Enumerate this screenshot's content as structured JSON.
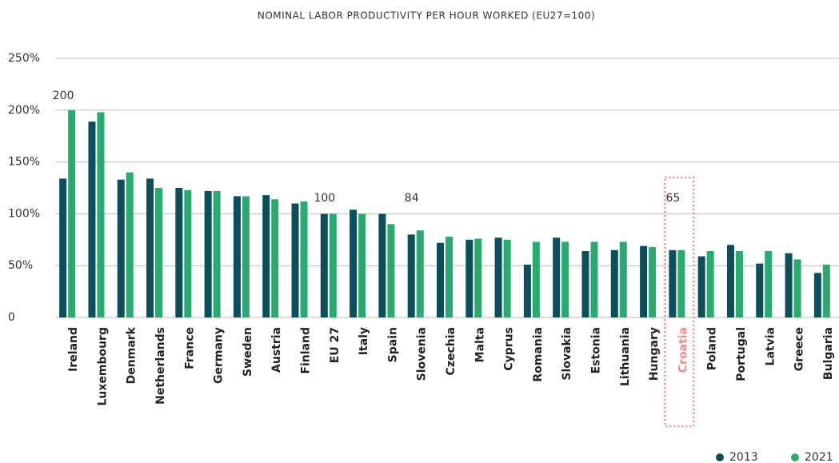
{
  "chart_data": {
    "type": "bar",
    "title": "NOMINAL LABOR PRODUCTIVITY PER HOUR WORKED (EU27=100)",
    "categories": [
      "Ireland",
      "Luxembourg",
      "Denmark",
      "Netherlands",
      "France",
      "Germany",
      "Sweden",
      "Austria",
      "Finland",
      "EU 27",
      "Italy",
      "Spain",
      "Slovenia",
      "Czechia",
      "Malta",
      "Cyprus",
      "Romania",
      "Slovakia",
      "Estonia",
      "Lithuania",
      "Hungary",
      "Croatia",
      "Poland",
      "Portugal",
      "Latvia",
      "Greece",
      "Bulgaria"
    ],
    "series": [
      {
        "name": "2013",
        "color": "#0b4f5c",
        "values": [
          134,
          189,
          133,
          134,
          125,
          122,
          117,
          118,
          110,
          100,
          104,
          100,
          80,
          72,
          75,
          77,
          51,
          77,
          64,
          65,
          69,
          65,
          59,
          70,
          52,
          62,
          43
        ]
      },
      {
        "name": "2021",
        "color": "#2aaa6e",
        "values": [
          200,
          198,
          140,
          125,
          123,
          122,
          117,
          114,
          112,
          100,
          100,
          90,
          84,
          78,
          76,
          75,
          73,
          73,
          73,
          73,
          68,
          65,
          64,
          64,
          64,
          56,
          51
        ],
        "value_labels": [
          "200",
          null,
          null,
          null,
          null,
          null,
          null,
          null,
          null,
          "100",
          null,
          null,
          "84",
          null,
          null,
          null,
          null,
          null,
          null,
          null,
          null,
          "65",
          null,
          null,
          null,
          null,
          null
        ]
      }
    ],
    "ylim": [
      0,
      250
    ],
    "yticks": [
      0,
      {
        "value": 50,
        "label": "50%"
      },
      {
        "value": 100,
        "label": "100%"
      },
      {
        "value": 150,
        "label": "150%"
      },
      {
        "value": 200,
        "label": "200%"
      },
      {
        "value": 250,
        "label": "250%"
      }
    ],
    "grid": true,
    "highlight_index": 21,
    "highlight_color": "#f08a8f",
    "legend": "bottom-right"
  }
}
